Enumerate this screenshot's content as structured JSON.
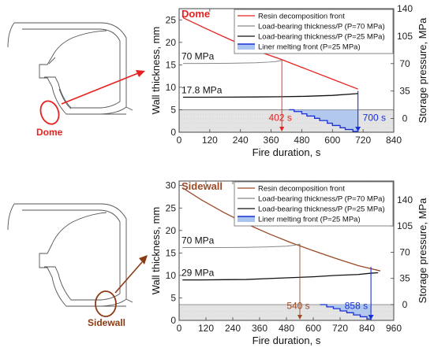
{
  "colors": {
    "resin_top": "#e8201f",
    "resin_bottom": "#9a4a26",
    "thick70": "#888888",
    "thick25": "#111111",
    "liner": "#1a2fd6",
    "liner_fill": "#a9c4ef",
    "grey_band": "#d9d9d9",
    "callout_top": "#e8201f",
    "callout_bottom": "#8b3a12"
  },
  "illustrations": [
    {
      "callout_label": "Dome"
    },
    {
      "callout_label": "Sidewall"
    }
  ],
  "chart_data": [
    {
      "type": "line",
      "title": "Dome",
      "xlabel": "Fire duration, s",
      "ylabel": "Wall thickness, mm",
      "y2label": "Storage pressure, MPa",
      "xlim": [
        0,
        840
      ],
      "ylim": [
        0,
        27.5
      ],
      "y2lim": [
        -17.5,
        140
      ],
      "xticks": [
        "0",
        "120",
        "240",
        "360",
        "480",
        "600",
        "720",
        "840"
      ],
      "yticks": [
        "0",
        "5",
        "10",
        "15",
        "20",
        "25"
      ],
      "y2ticks": [
        "0",
        "35",
        "70",
        "105",
        "140"
      ],
      "legend": [
        "Resin decomposition front",
        "Load-bearing thickness/P (P=70 MPa)",
        "Load-bearing thickness/P (P=25 MPa)",
        "Liner melting front (P=25 MPa)"
      ],
      "annotations": {
        "p70": "70 MPa",
        "p25": "17.8 MPa",
        "t70": "402 s",
        "t25": "700 s"
      },
      "grey_band_y": 5,
      "series": [
        {
          "name": "Resin decomposition front",
          "x": [
            15,
            100,
            200,
            300,
            400,
            500,
            600,
            700
          ],
          "y": [
            25.5,
            23.2,
            20.6,
            18.2,
            16.2,
            14.0,
            11.8,
            9.6
          ]
        },
        {
          "name": "Load-bearing thickness/P (P=70 MPa)",
          "x": [
            15,
            100,
            200,
            300,
            350,
            380,
            402
          ],
          "y": [
            15.3,
            15.3,
            15.35,
            15.45,
            15.6,
            15.75,
            16.0
          ]
        },
        {
          "name": "Load-bearing thickness/P (P=25 MPa)",
          "x": [
            15,
            100,
            200,
            300,
            400,
            500,
            600,
            700
          ],
          "y": [
            7.8,
            7.8,
            7.82,
            7.85,
            7.9,
            8.0,
            8.2,
            8.6
          ]
        },
        {
          "name": "Liner melting front (P=25 MPa)",
          "x": [
            430,
            450,
            480,
            500,
            530,
            550,
            580,
            600,
            630,
            650,
            680,
            700
          ],
          "y": [
            5.0,
            4.6,
            4.1,
            3.6,
            3.1,
            2.6,
            2.0,
            1.5,
            1.0,
            0.6,
            0.2,
            0.0
          ]
        }
      ],
      "markers": [
        {
          "x": 402,
          "label": "402 s"
        },
        {
          "x": 700,
          "label": "700 s"
        }
      ]
    },
    {
      "type": "line",
      "title": "Sidewall",
      "xlabel": "Fire duration, s",
      "ylabel": "Wall thickness, mm",
      "y2label": "Storage pressure, MPa",
      "xlim": [
        0,
        960
      ],
      "ylim": [
        0,
        31
      ],
      "y2lim": [
        -21,
        165
      ],
      "xticks": [
        "0",
        "120",
        "240",
        "360",
        "480",
        "600",
        "720",
        "840",
        "960"
      ],
      "yticks": [
        "0",
        "5",
        "10",
        "15",
        "20",
        "25",
        "30"
      ],
      "y2ticks": [
        "0",
        "35",
        "70",
        "105",
        "140"
      ],
      "legend": [
        "Resin decomposition front",
        "Load-bearing thickness/P (P=70 MPa)",
        "Load-bearing thickness/P (P=25 MPa)",
        "Liner melting front (P=25 MPa)"
      ],
      "annotations": {
        "p70": "70 MPa",
        "p25": "29 MPa",
        "t70": "540 s",
        "t25": "858 s"
      },
      "grey_band_y": 3.5,
      "series": [
        {
          "name": "Resin decomposition front",
          "x": [
            15,
            100,
            200,
            300,
            400,
            500,
            600,
            700,
            800,
            900
          ],
          "y": [
            29.5,
            26.8,
            24.0,
            21.5,
            19.3,
            17.3,
            15.5,
            13.8,
            12.2,
            11.0
          ]
        },
        {
          "name": "Load-bearing thickness/P (P=70 MPa)",
          "x": [
            15,
            100,
            200,
            300,
            400,
            480,
            520,
            540
          ],
          "y": [
            16.2,
            16.2,
            16.2,
            16.25,
            16.35,
            16.5,
            16.75,
            17.0
          ]
        },
        {
          "name": "Load-bearing thickness/P (P=25 MPa)",
          "x": [
            15,
            100,
            200,
            300,
            400,
            500,
            600,
            700,
            800,
            858,
            890
          ],
          "y": [
            9.0,
            9.0,
            9.05,
            9.1,
            9.3,
            9.5,
            9.7,
            10.0,
            10.2,
            10.5,
            10.6
          ]
        },
        {
          "name": "Liner melting front (P=25 MPa)",
          "x": [
            630,
            660,
            690,
            720,
            750,
            780,
            810,
            840,
            858
          ],
          "y": [
            3.5,
            3.0,
            2.6,
            2.1,
            1.7,
            1.2,
            0.8,
            0.3,
            0.0
          ]
        }
      ],
      "markers": [
        {
          "x": 540,
          "label": "540 s"
        },
        {
          "x": 858,
          "label": "858 s"
        }
      ]
    }
  ]
}
